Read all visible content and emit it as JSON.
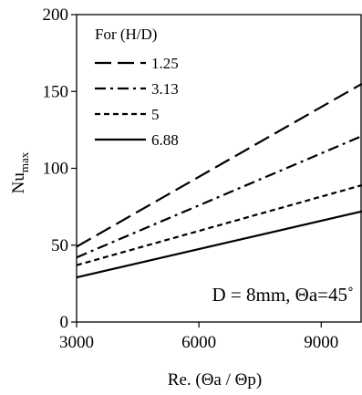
{
  "chart_data": {
    "type": "line",
    "xlabel": "Re. (Θa / Θp)",
    "ylabel_main": "Nu",
    "ylabel_sub": "max",
    "xlim": [
      3000,
      10000
    ],
    "ylim": [
      0,
      200
    ],
    "xticks": [
      3000,
      6000,
      9000
    ],
    "yticks": [
      0,
      50,
      100,
      150,
      200
    ],
    "grid": false,
    "legend_title": "For (H/D)",
    "legend_position": "top-left",
    "annotation": "D = 8mm, Θa=45˚",
    "x": [
      3000,
      10000
    ],
    "series": [
      {
        "name": "1.25",
        "values": [
          49,
          155
        ],
        "dash": "long-dash"
      },
      {
        "name": "3.13",
        "values": [
          42,
          121
        ],
        "dash": "dash-dot"
      },
      {
        "name": "5",
        "values": [
          37,
          89
        ],
        "dash": "short-dash"
      },
      {
        "name": "6.88",
        "values": [
          29,
          72
        ],
        "dash": "solid"
      }
    ]
  }
}
